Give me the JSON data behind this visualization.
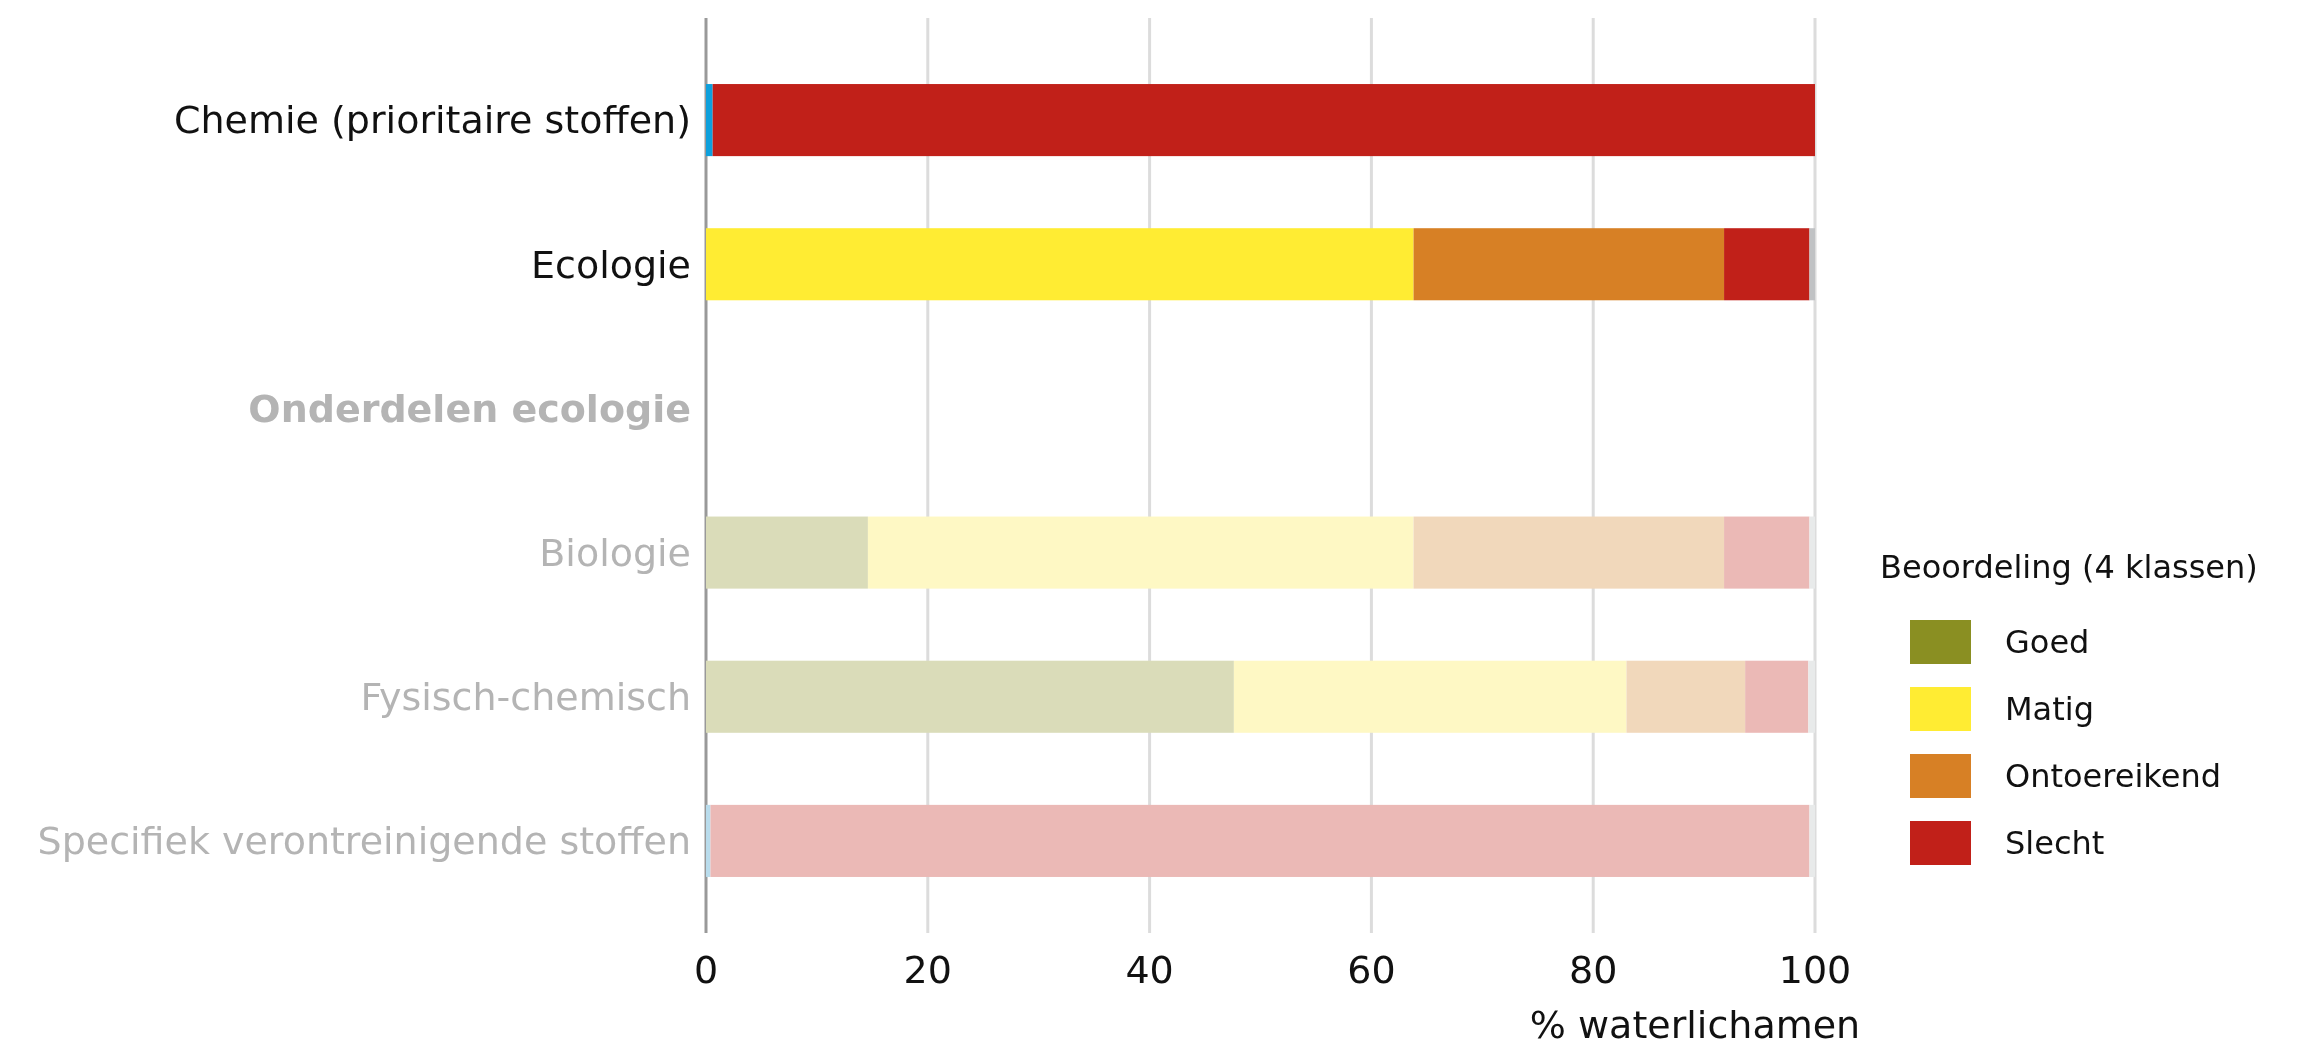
{
  "chart_data": {
    "type": "bar",
    "orientation": "horizontal",
    "stacked": true,
    "categories": [
      "Chemie (prioritaire stoffen)",
      "Ecologie",
      "Onderdelen ecologie",
      "Biologie",
      "Fysisch-chemisch",
      "Specifiek verontreinigende stoffen"
    ],
    "series": [
      {
        "color": "#0ea0dc",
        "colors": [
          "#0ea0dc",
          "#0ea0dc",
          "#0ea0dc",
          "#b9dcec",
          "#b9dcec",
          "#b9dcec"
        ],
        "values": [
          0.6,
          null,
          null,
          null,
          null,
          0.4
        ]
      },
      {
        "name": "Goed",
        "color": "#8a8f22",
        "colors": [
          "#8a8f22",
          "#8a8f22",
          "#8a8f22",
          "#dadcb9",
          "#dadcb9",
          "#dadcb9"
        ],
        "values": [
          null,
          null,
          null,
          14.6,
          47.6,
          null
        ]
      },
      {
        "name": "Matig",
        "color": "#ffec33",
        "colors": [
          "#ffec33",
          "#ffec33",
          "#ffec33",
          "#fef8c4",
          "#fef8c4",
          "#fef8c4"
        ],
        "values": [
          null,
          63.8,
          null,
          49.2,
          35.4,
          null
        ]
      },
      {
        "name": "Ontoereikend",
        "color": "#d78025",
        "colors": [
          "#d78025",
          "#d78025",
          "#d78025",
          "#f1d8bb",
          "#f1d8bb",
          "#f1d8bb"
        ],
        "values": [
          null,
          28.0,
          null,
          28.0,
          10.7,
          null
        ]
      },
      {
        "name": "Slecht",
        "color": "#c12019",
        "colors": [
          "#c12019",
          "#c12019",
          "#c12019",
          "#ebb9b6",
          "#ebb9b6",
          "#ebb9b6"
        ],
        "values": [
          99.4,
          7.7,
          null,
          7.7,
          5.7,
          99.1
        ]
      },
      {
        "color": "#c0c2c4",
        "colors": [
          "#c0c2c4",
          "#c0c2c4",
          "#c0c2c4",
          "#e8eaea",
          "#e8eaea",
          "#e8eaea"
        ],
        "values": [
          null,
          0.5,
          null,
          0.5,
          0.6,
          0.5
        ]
      }
    ],
    "xlim": [
      0,
      100
    ],
    "xticks": [
      0,
      20,
      40,
      60,
      80,
      100
    ],
    "grid": "x",
    "xlabel": "% waterlichamen",
    "legend_title": "Beoordeling (4 klassen)",
    "legend": "right"
  }
}
